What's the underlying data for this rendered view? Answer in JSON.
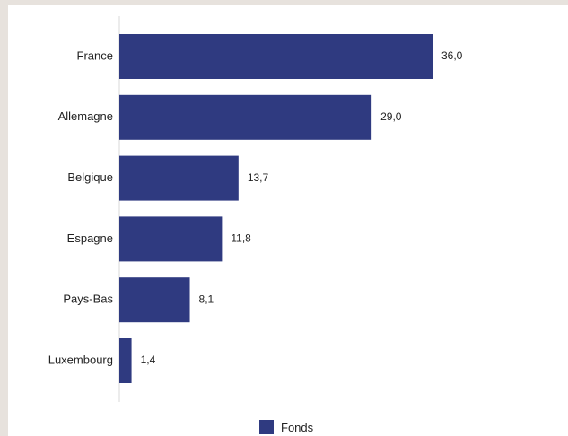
{
  "chart_data": {
    "type": "bar",
    "orientation": "horizontal",
    "categories": [
      "France",
      "Allemagne",
      "Belgique",
      "Espagne",
      "Pays-Bas",
      "Luxembourg"
    ],
    "series": [
      {
        "name": "Fonds",
        "values": [
          36.0,
          29.0,
          13.7,
          11.8,
          8.1,
          1.4
        ],
        "labels": [
          "36,0",
          "29,0",
          "13,7",
          "11,8",
          "8,1",
          "1,4"
        ]
      }
    ],
    "xlim": [
      0,
      36.0
    ],
    "grid": false,
    "legend_position": "bottom",
    "bar_color": "#2f3a80"
  }
}
